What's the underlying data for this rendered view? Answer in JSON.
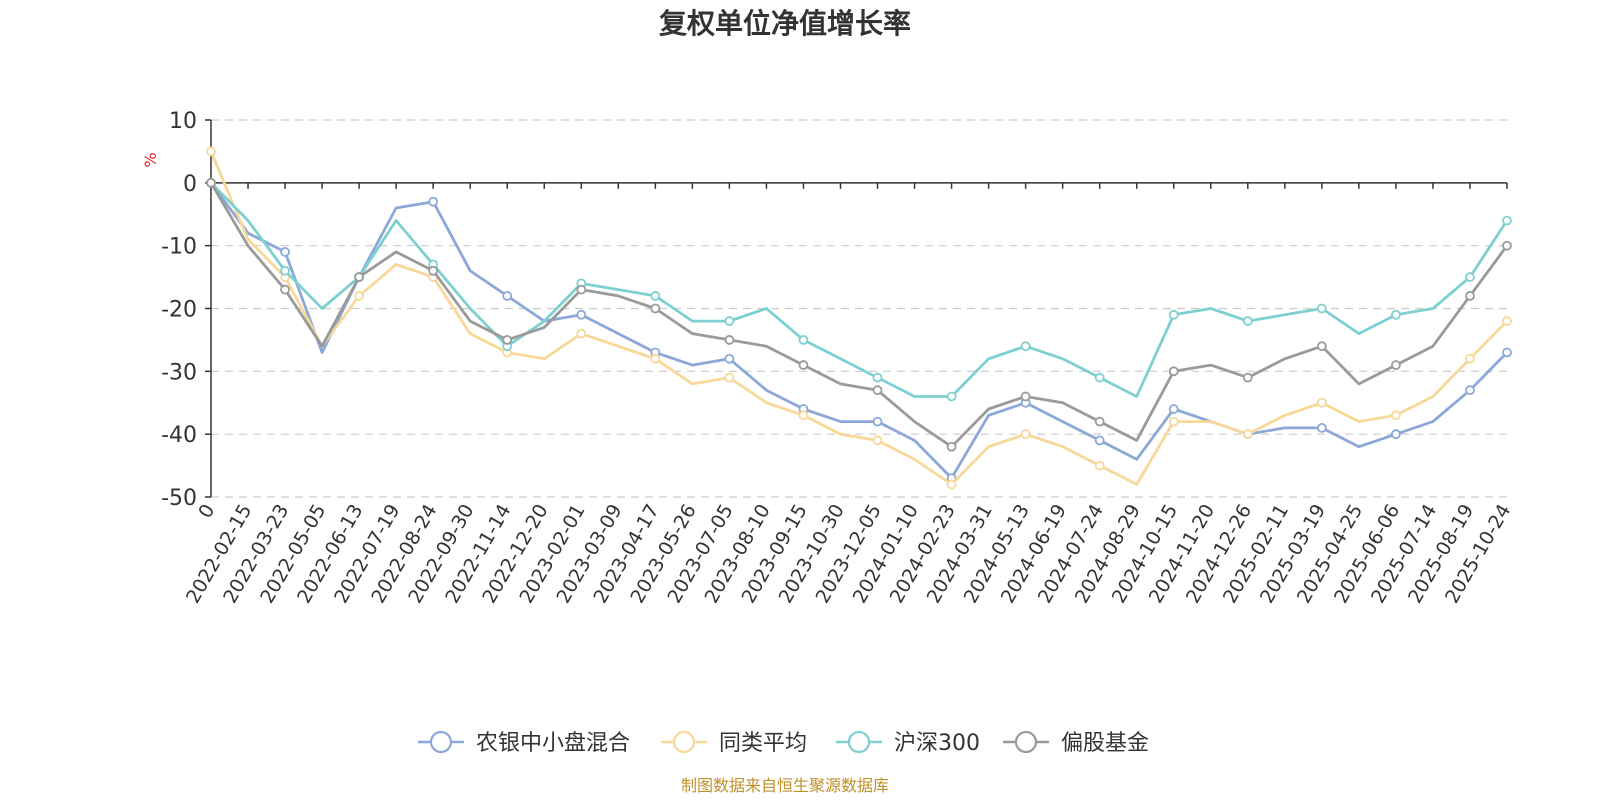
{
  "chart_data": {
    "type": "line",
    "title": "复权单位净值增长率",
    "ylabel": "%",
    "ylim": [
      -50,
      10
    ],
    "yticks": [
      10,
      0,
      -10,
      -20,
      -30,
      -40,
      -50
    ],
    "grid": true,
    "legend_position": "bottom",
    "source": "制图数据来自恒生聚源数据库",
    "categories": [
      "0",
      "2022-02-15",
      "2022-03-23",
      "2022-05-05",
      "2022-06-13",
      "2022-07-19",
      "2022-08-24",
      "2022-09-30",
      "2022-11-14",
      "2022-12-20",
      "2023-02-01",
      "2023-03-09",
      "2023-04-17",
      "2023-05-26",
      "2023-07-05",
      "2023-08-10",
      "2023-09-15",
      "2023-10-30",
      "2023-12-05",
      "2024-01-10",
      "2024-02-23",
      "2024-03-31",
      "2024-05-13",
      "2024-06-19",
      "2024-07-24",
      "2024-08-29",
      "2024-10-15",
      "2024-11-20",
      "2024-12-26",
      "2025-02-11",
      "2025-03-19",
      "2025-04-25",
      "2025-06-06",
      "2025-07-14",
      "2025-08-19",
      "2025-10-24"
    ],
    "series": [
      {
        "name": "农银中小盘混合",
        "color": "#8ba8d8",
        "values": [
          0,
          -8,
          -11,
          -27,
          -15,
          -4,
          -3,
          -14,
          -18,
          -22,
          -21,
          -24,
          -27,
          -29,
          -28,
          -33,
          -36,
          -38,
          -38,
          -41,
          -47,
          -37,
          -35,
          -38,
          -41,
          -44,
          -36,
          -38,
          -40,
          -39,
          -39,
          -42,
          -40,
          -38,
          -33,
          -27
        ]
      },
      {
        "name": "同类平均",
        "color": "#f8d898",
        "values": [
          5,
          -9,
          -15,
          -26,
          -18,
          -13,
          -15,
          -24,
          -27,
          -28,
          -24,
          -26,
          -28,
          -32,
          -31,
          -35,
          -37,
          -40,
          -41,
          -44,
          -48,
          -42,
          -40,
          -42,
          -45,
          -48,
          -38,
          -38,
          -40,
          -37,
          -35,
          -38,
          -37,
          -34,
          -28,
          -22
        ]
      },
      {
        "name": "沪深300",
        "color": "#7ed0d0",
        "values": [
          0,
          -6,
          -14,
          -20,
          -15,
          -6,
          -13,
          -20,
          -26,
          -22,
          -16,
          -17,
          -18,
          -22,
          -22,
          -20,
          -25,
          -28,
          -31,
          -34,
          -34,
          -28,
          -26,
          -28,
          -31,
          -34,
          -21,
          -20,
          -22,
          -21,
          -20,
          -24,
          -21,
          -20,
          -15,
          -6
        ]
      },
      {
        "name": "偏股基金",
        "color": "#9a9a9a",
        "values": [
          0,
          -10,
          -17,
          -26,
          -15,
          -11,
          -14,
          -22,
          -25,
          -23,
          -17,
          -18,
          -20,
          -24,
          -25,
          -26,
          -29,
          -32,
          -33,
          -38,
          -42,
          -36,
          -34,
          -35,
          -38,
          -41,
          -30,
          -29,
          -31,
          -28,
          -26,
          -32,
          -29,
          -26,
          -18,
          -10
        ]
      }
    ]
  }
}
